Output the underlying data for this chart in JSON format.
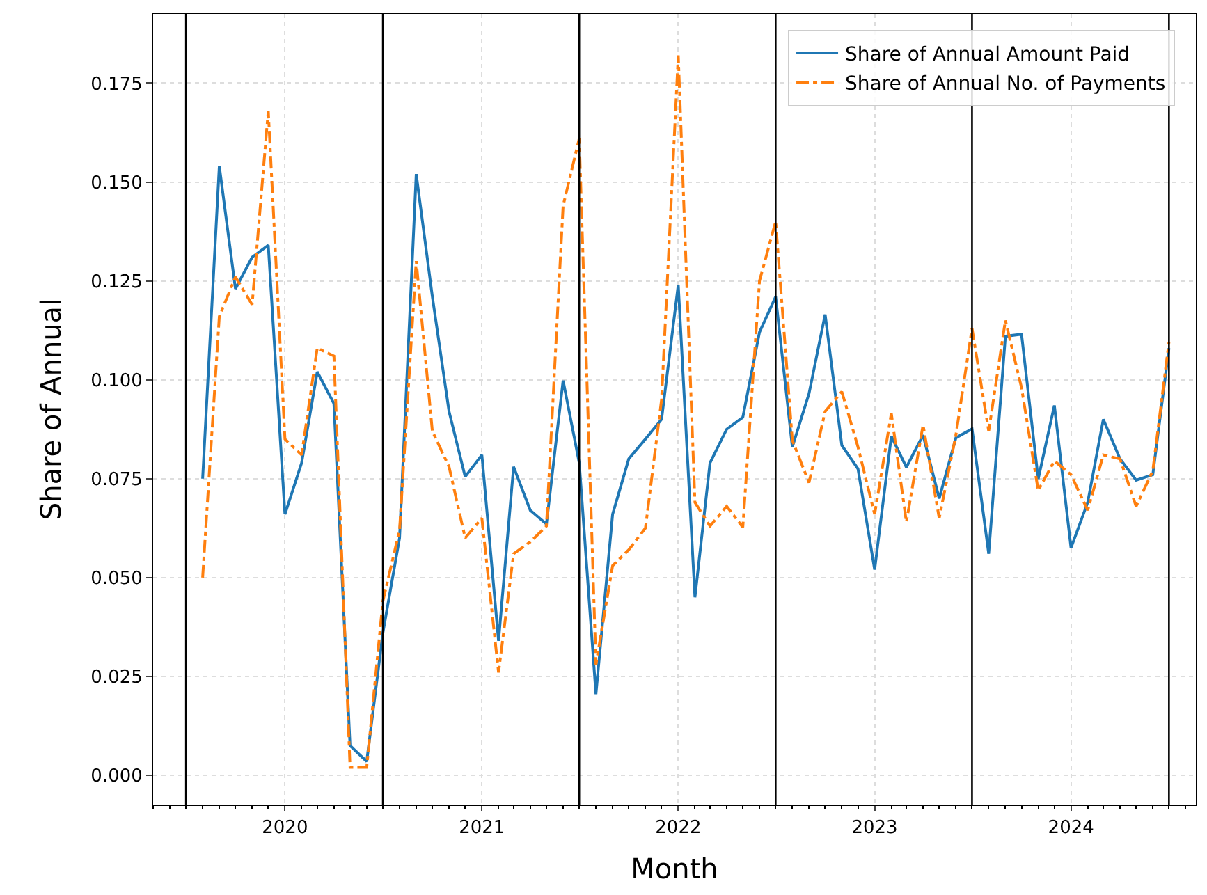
{
  "chart_data": {
    "type": "line",
    "xlabel": "Month",
    "ylabel": "Share of Annual",
    "x": [
      "2019-08",
      "2019-09",
      "2019-10",
      "2019-11",
      "2019-12",
      "2020-01",
      "2020-02",
      "2020-03",
      "2020-04",
      "2020-05",
      "2020-06",
      "2020-07",
      "2020-08",
      "2020-09",
      "2020-10",
      "2020-11",
      "2020-12",
      "2021-01",
      "2021-02",
      "2021-03",
      "2021-04",
      "2021-05",
      "2021-06",
      "2021-07",
      "2021-08",
      "2021-09",
      "2021-10",
      "2021-11",
      "2021-12",
      "2022-01",
      "2022-02",
      "2022-03",
      "2022-04",
      "2022-05",
      "2022-06",
      "2022-07",
      "2022-08",
      "2022-09",
      "2022-10",
      "2022-11",
      "2022-12",
      "2023-01",
      "2023-02",
      "2023-03",
      "2023-04",
      "2023-05",
      "2023-06",
      "2023-07",
      "2023-08",
      "2023-09",
      "2023-10",
      "2023-11",
      "2023-12",
      "2024-01",
      "2024-02",
      "2024-03",
      "2024-04",
      "2024-05",
      "2024-06",
      "2024-07"
    ],
    "series": [
      {
        "name": "Share of Annual Amount Paid",
        "color": "#1f77b4",
        "line_style": "solid",
        "values": [
          0.075,
          0.154,
          0.123,
          0.131,
          0.134,
          0.066,
          0.079,
          0.102,
          0.094,
          0.0075,
          0.0035,
          0.036,
          0.06,
          0.152,
          0.121,
          0.092,
          0.0755,
          0.081,
          0.034,
          0.078,
          0.067,
          0.0635,
          0.0998,
          0.079,
          0.0205,
          0.066,
          0.08,
          0.085,
          0.09,
          0.124,
          0.045,
          0.079,
          0.0875,
          0.0905,
          0.112,
          0.121,
          0.083,
          0.0965,
          0.1165,
          0.0834,
          0.0775,
          0.052,
          0.0857,
          0.0779,
          0.086,
          0.07,
          0.0853,
          0.0876,
          0.056,
          0.111,
          0.1115,
          0.0749,
          0.0935,
          0.0575,
          0.069,
          0.09,
          0.08,
          0.0746,
          0.076,
          0.108
        ]
      },
      {
        "name": "Share of Annual No. of Payments",
        "color": "#ff7f0e",
        "line_style": "dashdot",
        "values": [
          0.05,
          0.116,
          0.126,
          0.119,
          0.168,
          0.085,
          0.081,
          0.108,
          0.106,
          0.002,
          0.002,
          0.044,
          0.062,
          0.13,
          0.087,
          0.078,
          0.06,
          0.065,
          0.026,
          0.056,
          0.059,
          0.063,
          0.144,
          0.161,
          0.028,
          0.053,
          0.057,
          0.0625,
          0.095,
          0.182,
          0.069,
          0.063,
          0.068,
          0.0627,
          0.125,
          0.14,
          0.0847,
          0.074,
          0.092,
          0.097,
          0.083,
          0.066,
          0.0915,
          0.064,
          0.0886,
          0.065,
          0.086,
          0.113,
          0.087,
          0.115,
          0.098,
          0.072,
          0.0795,
          0.076,
          0.067,
          0.081,
          0.08,
          0.068,
          0.077,
          0.1095
        ]
      }
    ],
    "xlim": [
      "2019-05-01",
      "2024-08-20"
    ],
    "xticks": [
      {
        "value": "2020-01-01",
        "label": "2020"
      },
      {
        "value": "2021-01-01",
        "label": "2021"
      },
      {
        "value": "2022-01-01",
        "label": "2022"
      },
      {
        "value": "2023-01-01",
        "label": "2023"
      },
      {
        "value": "2024-01-01",
        "label": "2024"
      }
    ],
    "ylim": [
      -0.0074,
      0.1925
    ],
    "yticks": [
      {
        "value": 0,
        "label": "0.000"
      },
      {
        "value": 0.025,
        "label": "0.025"
      },
      {
        "value": 0.05,
        "label": "0.050"
      },
      {
        "value": 0.075,
        "label": "0.075"
      },
      {
        "value": 0.1,
        "label": "0.100"
      },
      {
        "value": 0.125,
        "label": "0.125"
      },
      {
        "value": 0.15,
        "label": "0.150"
      },
      {
        "value": 0.175,
        "label": "0.175"
      }
    ],
    "ref_lines": [
      {
        "axis": "x",
        "value": "2019-07-01",
        "color": "#000000"
      },
      {
        "axis": "x",
        "value": "2020-07-01",
        "color": "#000000"
      },
      {
        "axis": "x",
        "value": "2021-07-01",
        "color": "#000000"
      },
      {
        "axis": "x",
        "value": "2022-07-01",
        "color": "#000000"
      },
      {
        "axis": "x",
        "value": "2023-07-01",
        "color": "#000000"
      },
      {
        "axis": "x",
        "value": "2024-07-01",
        "color": "#000000"
      }
    ],
    "grid": true,
    "legend": "top right",
    "marker": "none"
  }
}
